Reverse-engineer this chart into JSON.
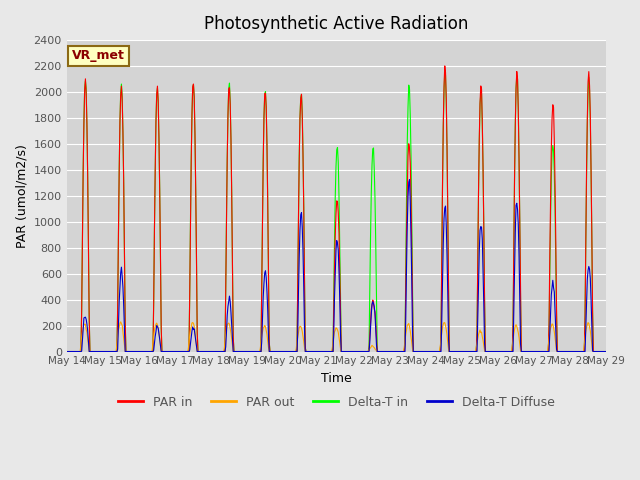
{
  "title": "Photosynthetic Active Radiation",
  "ylabel": "PAR (umol/m2/s)",
  "xlabel": "Time",
  "annotation": "VR_met",
  "ylim": [
    0,
    2400
  ],
  "legend_labels": [
    "PAR in",
    "PAR out",
    "Delta-T in",
    "Delta-T Diffuse"
  ],
  "line_colors": [
    "#ff0000",
    "#ffa500",
    "#00ff00",
    "#0000cc"
  ],
  "background_color": "#e8e8e8",
  "plot_bg_color": "#d4d4d4",
  "x_tick_labels": [
    "May 14",
    "May 15",
    "May 16",
    "May 17",
    "May 18",
    "May 19",
    "May 20",
    "May 21",
    "May 22",
    "May 23",
    "May 24",
    "May 25",
    "May 26",
    "May 27",
    "May 28",
    "May 29"
  ],
  "yticks": [
    0,
    200,
    400,
    600,
    800,
    1000,
    1200,
    1400,
    1600,
    1800,
    2000,
    2200,
    2400
  ],
  "num_days": 15,
  "points_per_day": 48,
  "annotation_color": "#8b0000",
  "annotation_bg": "#ffffc0",
  "annotation_border": "#8b6914",
  "daily_scale_par_in": [
    2100,
    2050,
    2040,
    2080,
    2060,
    2020,
    2000,
    1180,
    400,
    1620,
    2200,
    2050,
    2150,
    1900,
    2150
  ],
  "daily_scale_par_out": [
    210,
    230,
    220,
    225,
    220,
    200,
    195,
    180,
    40,
    210,
    220,
    160,
    200,
    210,
    220
  ],
  "daily_scale_green": [
    2100,
    2050,
    2040,
    2080,
    2060,
    2020,
    2000,
    1580,
    1570,
    2050,
    2180,
    2020,
    2150,
    1600,
    2100
  ],
  "daily_scale_blue": [
    280,
    620,
    185,
    185,
    415,
    620,
    1070,
    880,
    380,
    1320,
    1120,
    1000,
    1160,
    540,
    670
  ]
}
